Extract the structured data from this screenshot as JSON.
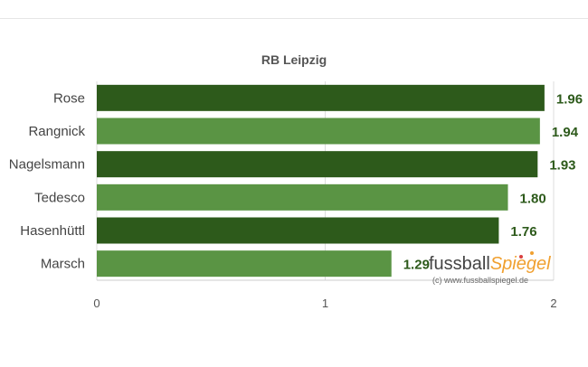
{
  "chart_data": {
    "type": "bar",
    "orientation": "horizontal",
    "title": "RB Leipzig",
    "categories": [
      "Rose",
      "Rangnick",
      "Nagelsmann",
      "Tedesco",
      "Hasenhüttl",
      "Marsch"
    ],
    "values": [
      1.96,
      1.94,
      1.93,
      1.8,
      1.76,
      1.29
    ],
    "value_labels": [
      "1.96",
      "1.94",
      "1.93",
      "1.80",
      "1.76",
      "1.29"
    ],
    "bar_colors": [
      "#2d5a1b",
      "#5a9444",
      "#2d5a1b",
      "#5a9444",
      "#2d5a1b",
      "#5a9444"
    ],
    "label_color": "#2d5a1b",
    "xlim": [
      0,
      2
    ],
    "xticks": [
      "0",
      "1",
      "2"
    ],
    "grid": "vertical",
    "legend": "none"
  },
  "watermark": {
    "brand_a": "fussball",
    "brand_b": "Spiegel",
    "url": "(c) www.fussballspiegel.de"
  }
}
